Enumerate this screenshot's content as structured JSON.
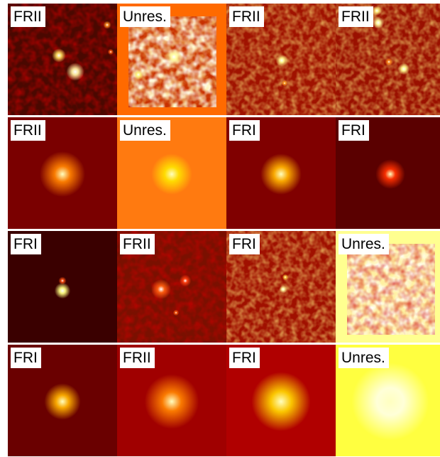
{
  "panels": [
    {
      "label": "FRII"
    },
    {
      "label": "Unres."
    },
    {
      "label": "FRII"
    },
    {
      "label": "FRII"
    },
    {
      "label": "FRII"
    },
    {
      "label": "Unres."
    },
    {
      "label": "FRI"
    },
    {
      "label": "FRI"
    },
    {
      "label": "FRI"
    },
    {
      "label": "FRII"
    },
    {
      "label": "FRI"
    },
    {
      "label": "Unres."
    },
    {
      "label": "FRI"
    },
    {
      "label": "FRII"
    },
    {
      "label": "FRI"
    },
    {
      "label": "Unres."
    }
  ]
}
